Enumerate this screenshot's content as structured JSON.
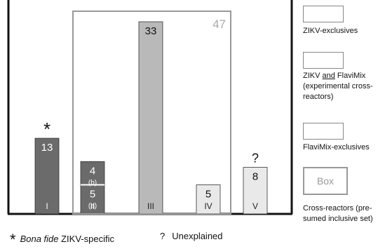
{
  "chart_data": {
    "type": "bar",
    "ylim": [
      0,
      33
    ],
    "bars": [
      {
        "numeral": "I",
        "segments": [
          {
            "value": 13,
            "label": "13",
            "sublabel": "",
            "color": "#6b6b6b"
          }
        ],
        "marker": "*"
      },
      {
        "numeral": "II",
        "segments": [
          {
            "value": 5,
            "label": "5",
            "sublabel": "(a)",
            "color": "#6b6b6b"
          },
          {
            "value": 4,
            "label": "4",
            "sublabel": "(b)",
            "color": "#6b6b6b"
          }
        ],
        "marker": ""
      },
      {
        "numeral": "III",
        "segments": [
          {
            "value": 33,
            "label": "33",
            "sublabel": "",
            "color": "#b9b9b9"
          }
        ],
        "marker": ""
      },
      {
        "numeral": "IV",
        "segments": [
          {
            "value": 5,
            "label": "5",
            "sublabel": "",
            "color": "#e9e9e9"
          }
        ],
        "marker": ""
      },
      {
        "numeral": "V",
        "segments": [
          {
            "value": 8,
            "label": "8",
            "sublabel": "",
            "color": "#e9e9e9"
          }
        ],
        "marker": "?"
      }
    ],
    "box_total": "47"
  },
  "legend": [
    {
      "label": "ZIKV-exclusives",
      "color": "#6b6b6b",
      "type": "fill"
    },
    {
      "label_parts": [
        "ZIKV ",
        "and",
        " FlaviMix (experimental cross-reactors)"
      ],
      "color": "#b9b9b9",
      "type": "fill"
    },
    {
      "label": "FlaviMix-exclusives",
      "color": "#e9e9e9",
      "type": "fill"
    },
    {
      "box_text": "Box",
      "label": "Cross-reactors (pre-sumed inclusive set)",
      "color": "#888888",
      "type": "outline"
    }
  ],
  "footnotes": {
    "star_mark": "*",
    "star_italic": "Bona fide",
    "star_text": " ZIKV-specific",
    "q_mark": "?",
    "q_text": "Unexplained"
  }
}
